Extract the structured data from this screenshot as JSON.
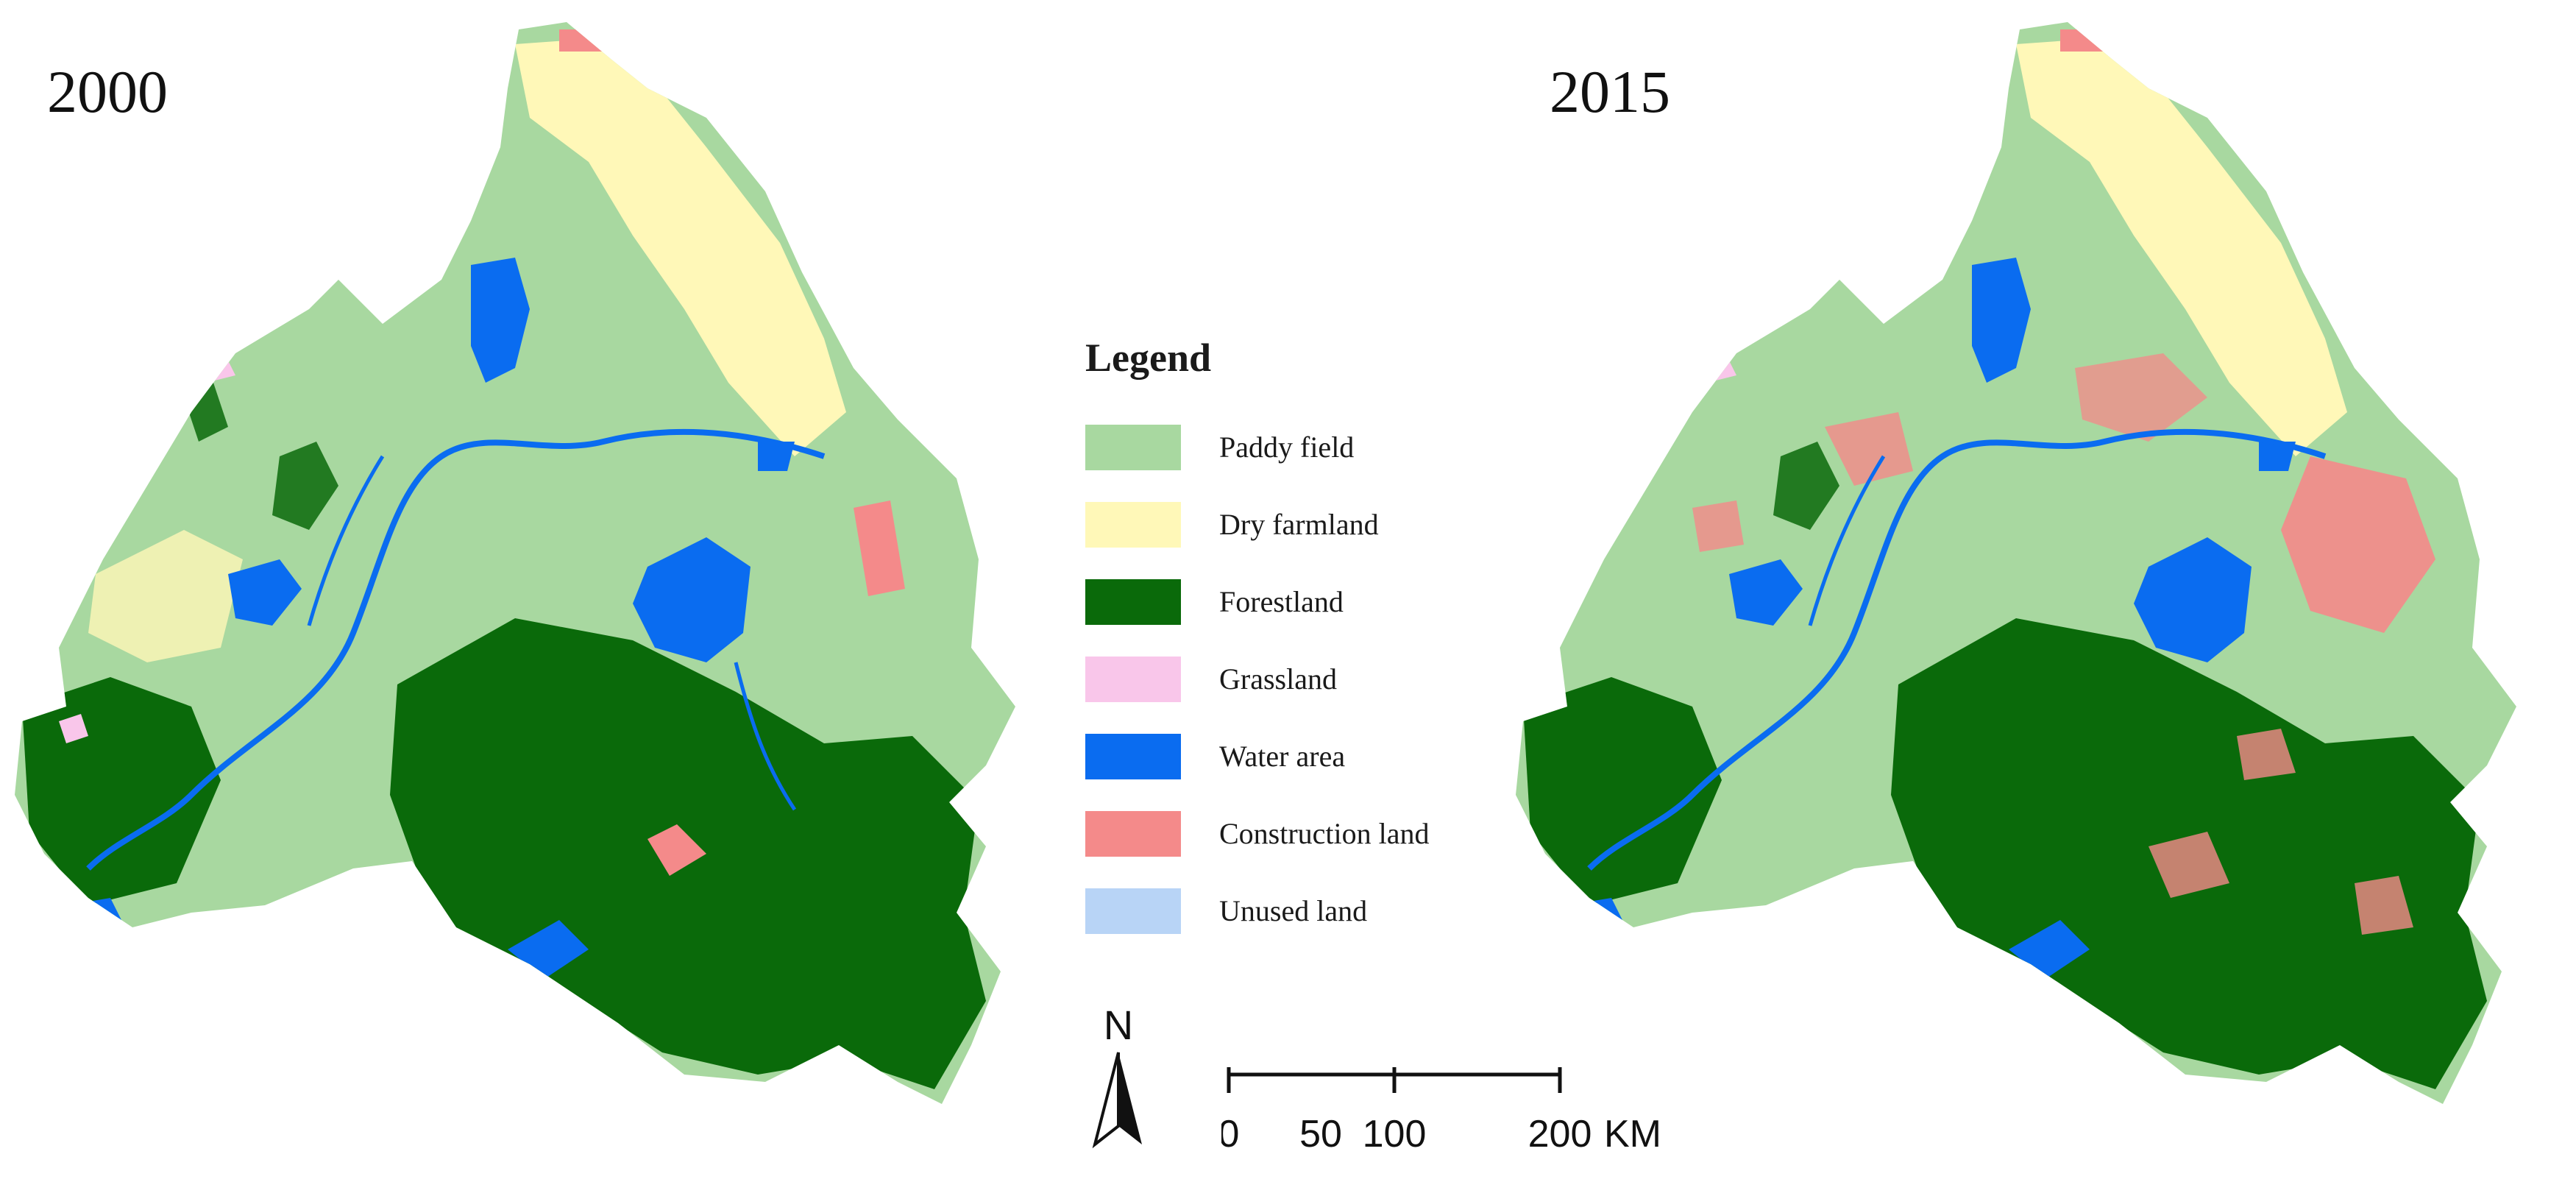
{
  "maps": [
    {
      "year": "2000",
      "accent": "#4f9d3a"
    },
    {
      "year": "2015",
      "accent": "#f08a8a"
    }
  ],
  "legend": {
    "title": "Legend",
    "items": [
      {
        "label": "Paddy field",
        "color": "#a8d8a0"
      },
      {
        "label": "Dry farmland",
        "color": "#fff8b8"
      },
      {
        "label": "Forestland",
        "color": "#0a6a0a"
      },
      {
        "label": "Grassland",
        "color": "#f9c6ea"
      },
      {
        "label": "Water area",
        "color": "#0a6cf0"
      },
      {
        "label": "Construction land",
        "color": "#f48a8a"
      },
      {
        "label": "Unused land",
        "color": "#b8d4f6"
      }
    ]
  },
  "north_arrow": {
    "label": "N",
    "icon": "north-arrow-icon"
  },
  "scale_bar": {
    "ticks": [
      "0",
      "50",
      "100",
      "200"
    ],
    "unit": "KM"
  }
}
